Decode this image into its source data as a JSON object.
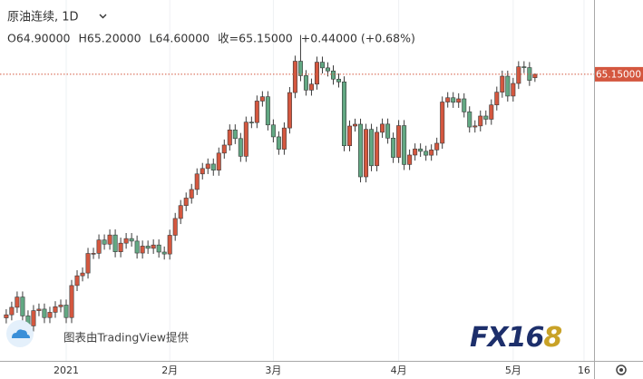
{
  "chart_data": {
    "type": "candlestick",
    "title": "原油连续, 1D",
    "header_values": [
      "O64.90000",
      "H65.20000",
      "L64.60000",
      "收=65.15000",
      "+0.44000 (+0.68%)"
    ],
    "watermark": "图表由TradingView提供",
    "logo": "FX168",
    "up_color": "#d4573f",
    "down_color": "#62a883",
    "price_line": {
      "value": 65.15,
      "label": "65.15000"
    },
    "ylim": [
      44.5,
      70.5
    ],
    "categories": [
      null,
      null,
      null,
      null,
      null,
      null,
      null,
      null,
      null,
      null,
      null,
      "2021",
      null,
      null,
      null,
      null,
      null,
      null,
      null,
      null,
      null,
      null,
      null,
      null,
      null,
      null,
      null,
      null,
      null,
      null,
      "2月",
      null,
      null,
      null,
      null,
      null,
      null,
      null,
      null,
      null,
      null,
      null,
      null,
      null,
      null,
      null,
      null,
      null,
      null,
      "3月",
      null,
      null,
      null,
      null,
      null,
      null,
      null,
      null,
      null,
      null,
      null,
      null,
      null,
      null,
      null,
      null,
      null,
      null,
      null,
      null,
      null,
      null,
      "4月",
      null,
      null,
      null,
      null,
      null,
      null,
      null,
      null,
      null,
      null,
      null,
      null,
      null,
      null,
      null,
      null,
      null,
      null,
      null,
      null,
      "5月",
      null,
      null,
      null,
      null,
      null,
      null,
      null,
      null,
      null,
      null,
      null,
      null,
      "16"
    ],
    "open": [
      47.6,
      47.82,
      48.36,
      49.1,
      47.74,
      47.02,
      48.12,
      48.23,
      47.62,
      48.0,
      48.4,
      48.52,
      47.62,
      49.93,
      50.63,
      50.83,
      52.24,
      52.25,
      53.21,
      52.91,
      53.57,
      52.36,
      52.98,
      53.31,
      53.13,
      52.27,
      52.77,
      52.61,
      52.85,
      52.34,
      52.2,
      53.55,
      54.76,
      55.69,
      56.23,
      56.85,
      57.97,
      58.36,
      58.68,
      58.24,
      59.47,
      60.05,
      61.14,
      60.52,
      59.24,
      61.7,
      61.67,
      63.22,
      63.53,
      61.5,
      60.64,
      59.75,
      61.28,
      63.83,
      66.09,
      65.05,
      64.01,
      64.44,
      66.02,
      65.61,
      65.39,
      64.8,
      64.6,
      60.0,
      61.42,
      61.55,
      57.76,
      61.18,
      58.56,
      60.97,
      61.56,
      60.55,
      59.16,
      61.45,
      58.65,
      59.33,
      59.77,
      59.6,
      59.32,
      59.7,
      60.18,
      63.15,
      63.46,
      63.13,
      63.38,
      62.44,
      61.35,
      61.43,
      62.14,
      61.91,
      62.94,
      63.86,
      65.01,
      63.58,
      64.49,
      65.69,
      65.63,
      64.9,
      null,
      null,
      null,
      null,
      null,
      null,
      null,
      null,
      null
    ],
    "high": [
      48.22,
      48.76,
      49.5,
      49.5,
      48.14,
      48.52,
      48.63,
      48.63,
      48.4,
      48.8,
      48.92,
      48.92,
      50.33,
      51.03,
      51.23,
      52.64,
      52.65,
      53.61,
      53.61,
      53.97,
      53.97,
      53.38,
      53.71,
      53.71,
      53.53,
      53.17,
      53.17,
      53.25,
      53.25,
      52.74,
      53.95,
      55.16,
      56.09,
      56.63,
      57.25,
      58.37,
      58.76,
      59.08,
      59.08,
      59.87,
      60.45,
      61.54,
      61.54,
      60.92,
      62.1,
      62.1,
      63.62,
      63.93,
      63.93,
      61.9,
      61.04,
      61.68,
      64.23,
      66.49,
      67.98,
      65.45,
      64.84,
      66.42,
      66.42,
      66.01,
      65.79,
      65.2,
      65.0,
      61.82,
      61.95,
      61.95,
      61.58,
      61.58,
      61.37,
      61.96,
      61.96,
      60.95,
      61.85,
      61.85,
      59.73,
      60.17,
      60.17,
      60.0,
      60.1,
      60.58,
      63.55,
      63.86,
      63.86,
      63.78,
      63.78,
      62.84,
      61.83,
      62.54,
      62.54,
      63.34,
      64.26,
      65.41,
      65.41,
      64.89,
      66.09,
      66.09,
      66.03,
      65.2,
      null,
      null,
      null,
      null,
      null,
      null,
      null,
      null,
      null
    ],
    "low": [
      47.2,
      47.42,
      47.96,
      47.34,
      46.62,
      46.62,
      47.72,
      47.22,
      47.22,
      47.6,
      48.0,
      47.22,
      47.22,
      49.53,
      50.23,
      50.43,
      51.84,
      51.85,
      52.51,
      52.51,
      51.96,
      51.96,
      52.58,
      52.73,
      51.87,
      51.87,
      52.21,
      52.21,
      51.94,
      51.8,
      51.8,
      53.15,
      54.36,
      55.29,
      55.83,
      56.45,
      57.57,
      57.96,
      57.84,
      57.84,
      59.07,
      59.65,
      60.12,
      58.84,
      58.84,
      61.27,
      61.27,
      62.82,
      61.1,
      60.24,
      59.35,
      59.35,
      60.88,
      63.43,
      64.65,
      63.61,
      63.61,
      64.04,
      65.21,
      64.99,
      64.4,
      64.2,
      59.6,
      59.6,
      61.02,
      57.36,
      57.36,
      58.16,
      58.16,
      60.57,
      60.15,
      58.76,
      58.76,
      58.25,
      58.25,
      58.93,
      59.2,
      58.92,
      58.92,
      59.3,
      59.78,
      62.75,
      62.73,
      62.73,
      62.04,
      60.95,
      60.95,
      61.03,
      61.51,
      61.51,
      62.54,
      63.46,
      63.18,
      63.18,
      64.09,
      65.23,
      64.31,
      64.6,
      null,
      null,
      null,
      null,
      null,
      null,
      null,
      null,
      null
    ],
    "close": [
      47.82,
      48.36,
      49.1,
      47.74,
      47.02,
      48.12,
      48.23,
      47.62,
      48.0,
      48.4,
      48.52,
      47.62,
      49.93,
      50.63,
      50.83,
      52.24,
      52.25,
      53.21,
      52.91,
      53.57,
      52.36,
      52.98,
      53.31,
      53.13,
      52.27,
      52.77,
      52.61,
      52.85,
      52.34,
      52.2,
      53.55,
      54.76,
      55.69,
      56.23,
      56.85,
      57.97,
      58.36,
      58.68,
      58.24,
      59.47,
      60.05,
      61.14,
      60.52,
      59.24,
      61.7,
      61.67,
      63.22,
      63.53,
      61.5,
      60.64,
      59.75,
      61.28,
      63.83,
      66.09,
      65.05,
      64.01,
      64.44,
      66.02,
      65.61,
      65.39,
      64.8,
      64.6,
      60.0,
      61.42,
      61.55,
      57.76,
      61.18,
      58.56,
      60.97,
      61.56,
      60.55,
      59.16,
      61.45,
      58.65,
      59.33,
      59.77,
      59.6,
      59.32,
      59.7,
      60.18,
      63.15,
      63.46,
      63.13,
      63.38,
      62.44,
      61.35,
      61.43,
      62.14,
      61.91,
      62.94,
      63.86,
      65.01,
      63.58,
      64.49,
      65.69,
      65.63,
      64.71,
      65.15,
      null,
      null,
      null,
      null,
      null,
      null,
      null,
      null,
      null
    ]
  }
}
